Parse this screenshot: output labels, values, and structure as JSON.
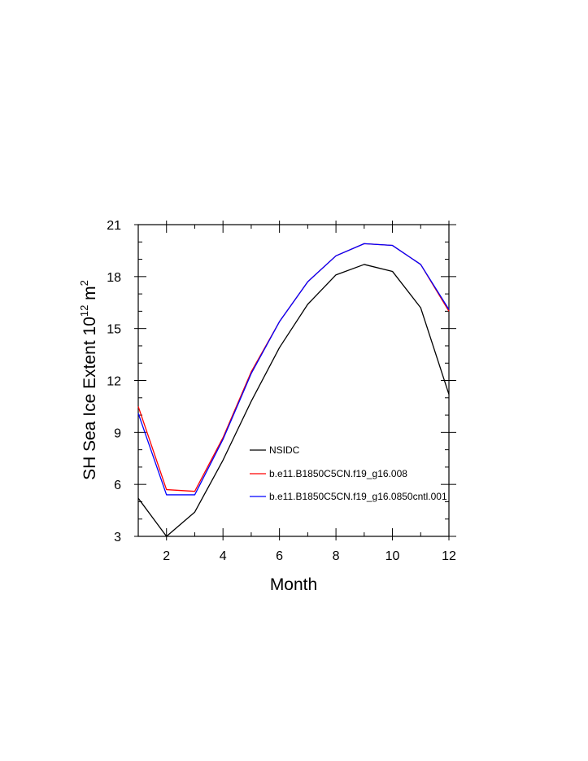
{
  "chart_data": {
    "type": "line",
    "xlabel": "Month",
    "ylabel": {
      "prefix": "SH Sea Ice Extent 10",
      "exponent1": "12",
      "unit": " m",
      "exponent2": "2"
    },
    "xlim": [
      1,
      12
    ],
    "ylim": [
      3,
      21
    ],
    "x_ticks": [
      2,
      4,
      6,
      8,
      10,
      12
    ],
    "y_ticks": [
      3,
      6,
      9,
      12,
      15,
      18,
      21
    ],
    "grid": false,
    "legend_placement": "center",
    "x": [
      1,
      2,
      3,
      4,
      5,
      6,
      7,
      8,
      9,
      10,
      11,
      12
    ],
    "series": [
      {
        "name": "NSIDC",
        "color": "#000000",
        "values": [
          5.2,
          3.0,
          4.4,
          7.4,
          10.8,
          13.9,
          16.4,
          18.1,
          18.7,
          18.3,
          16.2,
          11.2
        ]
      },
      {
        "name": "b.e11.B1850C5CN.f19_g16.008",
        "color": "#ff0000",
        "values": [
          10.5,
          5.7,
          5.6,
          8.7,
          12.5,
          15.4,
          17.7,
          19.2,
          19.9,
          19.8,
          18.7,
          16.0
        ]
      },
      {
        "name": "b.e11.B1850C5CN.f19_g16.0850cntl.001",
        "color": "#0000ff",
        "values": [
          10.1,
          5.4,
          5.4,
          8.6,
          12.4,
          15.4,
          17.7,
          19.2,
          19.9,
          19.8,
          18.7,
          16.1
        ]
      }
    ]
  }
}
